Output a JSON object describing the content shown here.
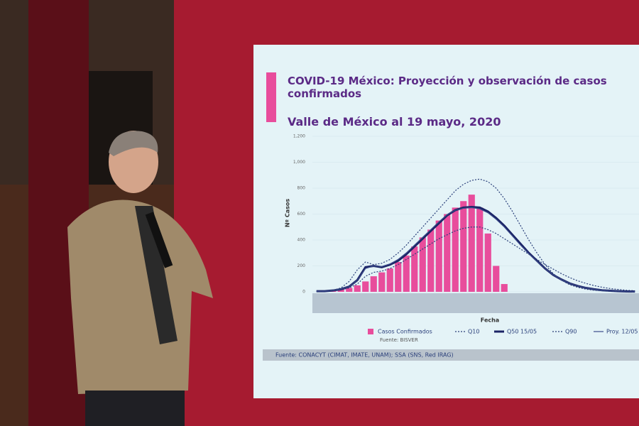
{
  "chart_data": {
    "type": "bar",
    "title": "COVID-19 México: Proyección y observación de casos confirmados",
    "subtitle": "Valle de México al 19 mayo, 2020",
    "y_label": "Nº Casos",
    "x_label": "Fecha",
    "source_note": "Fuente: BISVER",
    "footer": "Fuente: CONACYT (CIMAT, IMATE, UNAM);   SSA (SNS, Red IRAG)",
    "ylim": [
      0,
      1200
    ],
    "yticks": [
      0,
      200,
      400,
      600,
      {
        "value": 800,
        "label": "800"
      },
      {
        "value": 1000,
        "label": "1,000"
      },
      {
        "value": 1200,
        "label": "1,200"
      }
    ],
    "grid": true,
    "categories": [
      null,
      null,
      null,
      null,
      null,
      null,
      null,
      null,
      null,
      null,
      null,
      null,
      null,
      null,
      null,
      null,
      null,
      null,
      null,
      null,
      null,
      null,
      null,
      null,
      null,
      null,
      null,
      null,
      null,
      null,
      null,
      null,
      null,
      null,
      null,
      null,
      null,
      null,
      null,
      null
    ],
    "series": [
      {
        "name": "Casos Confirmados",
        "type": "bar",
        "color": "#e84d9c",
        "values": [
          0,
          5,
          10,
          20,
          30,
          50,
          80,
          120,
          150,
          180,
          230,
          280,
          350,
          420,
          480,
          550,
          600,
          650,
          700,
          750,
          650,
          450,
          200,
          60,
          0,
          0,
          0,
          0,
          0,
          0,
          0,
          0,
          0,
          0,
          0,
          0,
          0,
          0,
          0,
          0
        ]
      },
      {
        "name": "Q10",
        "type": "line",
        "color": "#2a3f7a",
        "dash": true,
        "width": 1.2,
        "values": [
          5,
          5,
          8,
          15,
          30,
          60,
          120,
          150,
          160,
          180,
          210,
          250,
          290,
          330,
          370,
          410,
          440,
          470,
          490,
          500,
          500,
          480,
          450,
          410,
          370,
          330,
          290,
          250,
          210,
          175,
          140,
          110,
          85,
          65,
          48,
          35,
          25,
          18,
          12,
          8
        ]
      },
      {
        "name": "Q50 15/05",
        "type": "line",
        "color": "#1b2466",
        "dash": false,
        "width": 3,
        "values": [
          5,
          5,
          10,
          20,
          40,
          90,
          190,
          200,
          190,
          210,
          240,
          290,
          350,
          410,
          470,
          530,
          590,
          630,
          650,
          655,
          650,
          620,
          570,
          510,
          440,
          370,
          300,
          240,
          180,
          130,
          95,
          65,
          45,
          30,
          20,
          12,
          8,
          5,
          3,
          2
        ]
      },
      {
        "name": "Q90",
        "type": "line",
        "color": "#2a3f7a",
        "dash": true,
        "width": 1.2,
        "values": [
          5,
          5,
          12,
          30,
          80,
          170,
          230,
          210,
          220,
          250,
          300,
          360,
          430,
          500,
          570,
          640,
          710,
          780,
          830,
          860,
          870,
          850,
          800,
          720,
          620,
          510,
          400,
          300,
          210,
          140,
          90,
          55,
          35,
          20,
          12,
          8,
          5,
          3,
          2,
          1
        ]
      },
      {
        "name": "Proy. 12/05",
        "type": "line",
        "color": "#3a4a8a",
        "dash": false,
        "width": 1.2,
        "values": [
          5,
          5,
          10,
          20,
          40,
          90,
          180,
          200,
          195,
          215,
          250,
          300,
          360,
          420,
          480,
          540,
          595,
          630,
          645,
          650,
          640,
          610,
          560,
          500,
          430,
          360,
          295,
          235,
          180,
          130,
          95,
          65,
          45,
          30,
          20,
          12,
          8,
          5,
          3,
          2
        ]
      }
    ]
  }
}
